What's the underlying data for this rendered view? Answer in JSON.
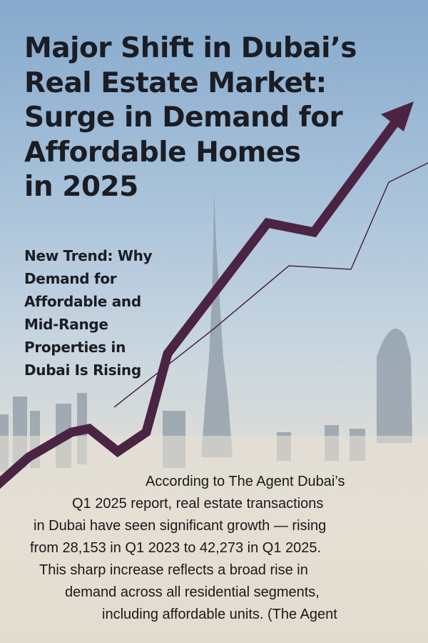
{
  "headline": {
    "lines": [
      "Major Shift in Dubai’s",
      "Real Estate Market:",
      "Surge in Demand for",
      "Affordable Homes",
      "in 2025"
    ]
  },
  "subheadline": {
    "lines": [
      "New Trend: Why",
      "Demand for",
      "Affordable and",
      "Mid-Range",
      "Properties in",
      "Dubai Is Rising"
    ]
  },
  "body": {
    "lines": [
      "According to The Agent Dubai’s",
      "Q1 2025 report, real estate transactions",
      "in Dubai have seen significant growth — rising",
      "from 28,153 in Q1 2023 to 42,273 in Q1 2025.",
      "This sharp increase reflects a broad rise in",
      "demand across all residential segments,",
      "including affordable units. (The Agent"
    ]
  },
  "colors": {
    "arrow": "#4b2444",
    "text": "#1a1d24"
  },
  "icons": {
    "trend": "rising-arrow-icon"
  }
}
